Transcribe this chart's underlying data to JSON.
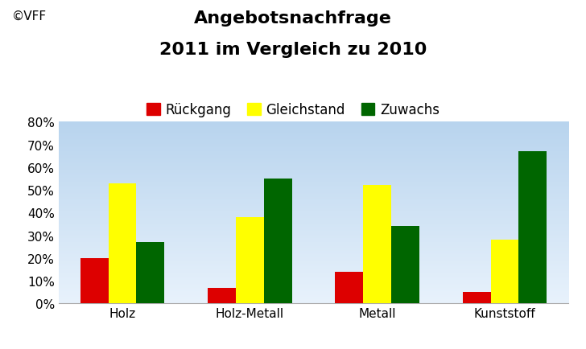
{
  "title_line1": "Angebotsnachfrage",
  "title_line2": "2011 im Vergleich zu 2010",
  "copyright": "©VFF",
  "categories": [
    "Holz",
    "Holz-Metall",
    "Metall",
    "Kunststoff"
  ],
  "series": [
    {
      "label": "Rückgang",
      "color": "#DD0000",
      "values": [
        20,
        7,
        14,
        5
      ]
    },
    {
      "label": "Gleichstand",
      "color": "#FFFF00",
      "values": [
        53,
        38,
        52,
        28
      ]
    },
    {
      "label": "Zuwachs",
      "color": "#006600",
      "values": [
        27,
        55,
        34,
        67
      ]
    }
  ],
  "ylim": [
    0,
    80
  ],
  "yticks": [
    0,
    10,
    20,
    30,
    40,
    50,
    60,
    70,
    80
  ],
  "ytick_labels": [
    "0%",
    "10%",
    "20%",
    "30%",
    "40%",
    "50%",
    "60%",
    "70%",
    "80%"
  ],
  "bar_width": 0.22,
  "title_fontsize": 16,
  "tick_fontsize": 11,
  "legend_fontsize": 12,
  "copyright_fontsize": 11,
  "bg_color_top": "#b8d4ee",
  "bg_color_bottom": "#e8f2fc"
}
